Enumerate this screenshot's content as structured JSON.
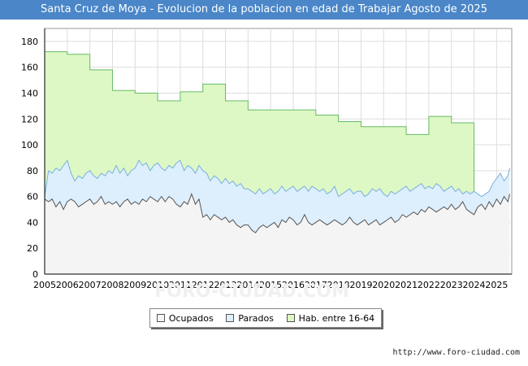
{
  "title": "Santa Cruz de Moya - Evolucion de la poblacion en edad de Trabajar Agosto de 2025",
  "source": "http://www.foro-ciudad.com",
  "watermark": "FORO-CIUDAD.COM",
  "colors": {
    "hab_fill": "#ddf8c4",
    "hab_line": "#66bb66",
    "par_fill": "#ddeefc",
    "par_line": "#7ab0e0",
    "ocu_fill": "#f4f4f4",
    "ocu_line": "#555555",
    "grid": "#dddddd"
  },
  "legend": {
    "ocupados": "Ocupados",
    "parados": "Parados",
    "hab": "Hab. entre 16-64"
  },
  "chart_data": {
    "type": "area",
    "title": "Santa Cruz de Moya - Evolucion de la poblacion en edad de Trabajar Agosto de 2025",
    "xlim": [
      2005,
      2025.67
    ],
    "ylim": [
      0,
      190
    ],
    "yticks": [
      0,
      20,
      40,
      60,
      80,
      100,
      120,
      140,
      160,
      180
    ],
    "xticks": [
      "2005",
      "2006",
      "2007",
      "2008",
      "2009",
      "2010",
      "2011",
      "2012",
      "2013",
      "2014",
      "2015",
      "2016",
      "2017",
      "2018",
      "2019",
      "2020",
      "2021",
      "2022",
      "2023",
      "2024",
      "2025"
    ],
    "grid": true,
    "legend_position": "bottom-center",
    "hab_entre_16_64": [
      {
        "start": 2005,
        "end": 2006,
        "value": 172
      },
      {
        "start": 2006,
        "end": 2007,
        "value": 170
      },
      {
        "start": 2007,
        "end": 2008,
        "value": 158
      },
      {
        "start": 2008,
        "end": 2009,
        "value": 142
      },
      {
        "start": 2009,
        "end": 2010,
        "value": 140
      },
      {
        "start": 2010,
        "end": 2011,
        "value": 134
      },
      {
        "start": 2011,
        "end": 2012,
        "value": 141
      },
      {
        "start": 2012,
        "end": 2013,
        "value": 147
      },
      {
        "start": 2013,
        "end": 2014,
        "value": 134
      },
      {
        "start": 2014,
        "end": 2017,
        "value": 127
      },
      {
        "start": 2017,
        "end": 2018,
        "value": 123
      },
      {
        "start": 2018,
        "end": 2019,
        "value": 118
      },
      {
        "start": 2019,
        "end": 2021,
        "value": 114
      },
      {
        "start": 2021,
        "end": 2022,
        "value": 108
      },
      {
        "start": 2022,
        "end": 2023,
        "value": 122
      },
      {
        "start": 2023,
        "end": 2024,
        "value": 117
      }
    ],
    "activos_parados_plus_ocupados": {
      "x": [
        2005.0,
        2005.17,
        2005.33,
        2005.5,
        2005.67,
        2005.83,
        2006.0,
        2006.17,
        2006.33,
        2006.5,
        2006.67,
        2006.83,
        2007.0,
        2007.17,
        2007.33,
        2007.5,
        2007.67,
        2007.83,
        2008.0,
        2008.17,
        2008.33,
        2008.5,
        2008.67,
        2008.83,
        2009.0,
        2009.17,
        2009.33,
        2009.5,
        2009.67,
        2009.83,
        2010.0,
        2010.17,
        2010.33,
        2010.5,
        2010.67,
        2010.83,
        2011.0,
        2011.17,
        2011.33,
        2011.5,
        2011.67,
        2011.83,
        2012.0,
        2012.17,
        2012.33,
        2012.5,
        2012.67,
        2012.83,
        2013.0,
        2013.17,
        2013.33,
        2013.5,
        2013.67,
        2013.83,
        2014.0,
        2014.17,
        2014.33,
        2014.5,
        2014.67,
        2014.83,
        2015.0,
        2015.17,
        2015.33,
        2015.5,
        2015.67,
        2015.83,
        2016.0,
        2016.17,
        2016.33,
        2016.5,
        2016.67,
        2016.83,
        2017.0,
        2017.17,
        2017.33,
        2017.5,
        2017.67,
        2017.83,
        2018.0,
        2018.17,
        2018.33,
        2018.5,
        2018.67,
        2018.83,
        2019.0,
        2019.17,
        2019.33,
        2019.5,
        2019.67,
        2019.83,
        2020.0,
        2020.17,
        2020.33,
        2020.5,
        2020.67,
        2020.83,
        2021.0,
        2021.17,
        2021.33,
        2021.5,
        2021.67,
        2021.83,
        2022.0,
        2022.17,
        2022.33,
        2022.5,
        2022.67,
        2022.83,
        2023.0,
        2023.17,
        2023.33,
        2023.5,
        2023.67,
        2023.83,
        2024.0,
        2024.17,
        2024.33,
        2024.5,
        2024.67,
        2024.83,
        2025.0,
        2025.17,
        2025.33,
        2025.5,
        2025.58
      ],
      "values": [
        60,
        80,
        78,
        82,
        80,
        84,
        88,
        78,
        72,
        76,
        74,
        78,
        80,
        76,
        74,
        78,
        76,
        80,
        78,
        84,
        78,
        82,
        76,
        80,
        82,
        88,
        84,
        86,
        80,
        84,
        86,
        82,
        80,
        84,
        82,
        86,
        88,
        80,
        84,
        82,
        78,
        84,
        80,
        78,
        72,
        76,
        74,
        70,
        74,
        70,
        72,
        68,
        70,
        66,
        66,
        64,
        62,
        66,
        62,
        64,
        66,
        62,
        64,
        68,
        64,
        66,
        68,
        64,
        66,
        68,
        64,
        68,
        66,
        64,
        66,
        62,
        64,
        68,
        60,
        62,
        64,
        66,
        62,
        64,
        64,
        60,
        62,
        66,
        64,
        66,
        62,
        60,
        64,
        62,
        64,
        66,
        68,
        64,
        66,
        68,
        70,
        66,
        68,
        66,
        70,
        68,
        64,
        66,
        68,
        64,
        66,
        62,
        64,
        62,
        64,
        62,
        60,
        62,
        64,
        70,
        74,
        78,
        72,
        76,
        82
      ]
    },
    "ocupados": {
      "x": [
        2005.0,
        2005.17,
        2005.33,
        2005.5,
        2005.67,
        2005.83,
        2006.0,
        2006.17,
        2006.33,
        2006.5,
        2006.67,
        2006.83,
        2007.0,
        2007.17,
        2007.33,
        2007.5,
        2007.67,
        2007.83,
        2008.0,
        2008.17,
        2008.33,
        2008.5,
        2008.67,
        2008.83,
        2009.0,
        2009.17,
        2009.33,
        2009.5,
        2009.67,
        2009.83,
        2010.0,
        2010.17,
        2010.33,
        2010.5,
        2010.67,
        2010.83,
        2011.0,
        2011.17,
        2011.33,
        2011.5,
        2011.67,
        2011.83,
        2012.0,
        2012.17,
        2012.33,
        2012.5,
        2012.67,
        2012.83,
        2013.0,
        2013.17,
        2013.33,
        2013.5,
        2013.67,
        2013.83,
        2014.0,
        2014.17,
        2014.33,
        2014.5,
        2014.67,
        2014.83,
        2015.0,
        2015.17,
        2015.33,
        2015.5,
        2015.67,
        2015.83,
        2016.0,
        2016.17,
        2016.33,
        2016.5,
        2016.67,
        2016.83,
        2017.0,
        2017.17,
        2017.33,
        2017.5,
        2017.67,
        2017.83,
        2018.0,
        2018.17,
        2018.33,
        2018.5,
        2018.67,
        2018.83,
        2019.0,
        2019.17,
        2019.33,
        2019.5,
        2019.67,
        2019.83,
        2020.0,
        2020.17,
        2020.33,
        2020.5,
        2020.67,
        2020.83,
        2021.0,
        2021.17,
        2021.33,
        2021.5,
        2021.67,
        2021.83,
        2022.0,
        2022.17,
        2022.33,
        2022.5,
        2022.67,
        2022.83,
        2023.0,
        2023.17,
        2023.33,
        2023.5,
        2023.67,
        2023.83,
        2024.0,
        2024.17,
        2024.33,
        2024.5,
        2024.67,
        2024.83,
        2025.0,
        2025.17,
        2025.33,
        2025.5,
        2025.58
      ],
      "values": [
        58,
        56,
        58,
        52,
        56,
        50,
        56,
        58,
        56,
        52,
        54,
        56,
        58,
        54,
        56,
        60,
        54,
        56,
        54,
        56,
        52,
        56,
        58,
        54,
        56,
        54,
        58,
        56,
        60,
        58,
        56,
        60,
        56,
        60,
        58,
        54,
        52,
        56,
        54,
        62,
        54,
        58,
        44,
        46,
        42,
        46,
        44,
        42,
        44,
        40,
        42,
        38,
        36,
        38,
        38,
        34,
        32,
        36,
        38,
        36,
        38,
        40,
        36,
        42,
        40,
        44,
        42,
        38,
        40,
        46,
        40,
        38,
        40,
        42,
        40,
        38,
        40,
        42,
        40,
        38,
        40,
        44,
        40,
        38,
        40,
        42,
        38,
        40,
        42,
        38,
        40,
        42,
        44,
        40,
        42,
        46,
        44,
        46,
        48,
        46,
        50,
        48,
        52,
        50,
        48,
        50,
        52,
        50,
        54,
        50,
        52,
        56,
        50,
        48,
        46,
        52,
        54,
        50,
        56,
        52,
        58,
        54,
        60,
        56,
        62
      ]
    }
  }
}
